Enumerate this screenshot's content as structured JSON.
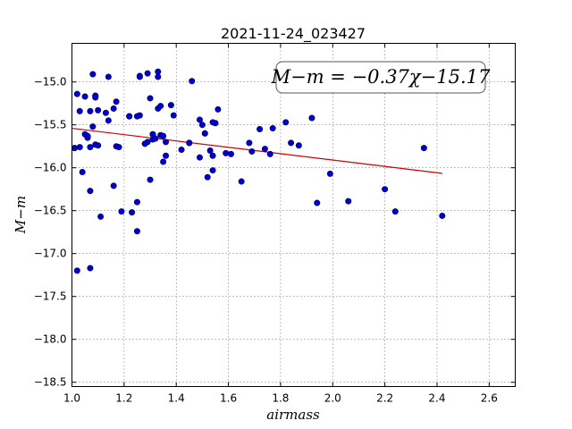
{
  "chart_data": {
    "type": "scatter",
    "title": "2021-11-24_023427",
    "xlabel": "airmass",
    "ylabel": "M−m",
    "xlim": [
      1.0,
      2.7
    ],
    "ylim": [
      -18.55,
      -14.55
    ],
    "xticks": [
      1.0,
      1.2,
      1.4,
      1.6,
      1.8,
      2.0,
      2.2,
      2.4,
      2.6
    ],
    "xtick_labels": [
      "1.0",
      "1.2",
      "1.4",
      "1.6",
      "1.8",
      "2.0",
      "2.2",
      "2.4",
      "2.6"
    ],
    "yticks": [
      -15.0,
      -15.5,
      -16.0,
      -16.5,
      -17.0,
      -17.5,
      -18.0,
      -18.5
    ],
    "ytick_labels": [
      "−15.0",
      "−15.5",
      "−16.0",
      "−16.5",
      "−17.0",
      "−17.5",
      "−18.0",
      "−18.5"
    ],
    "grid": true,
    "annotation": "M−m = −0.37χ−15.17",
    "point_color": "#0000cc",
    "fit_color": "#cc0000",
    "fit": {
      "slope": -0.37,
      "intercept": -15.17,
      "x_range": [
        1.0,
        2.42
      ]
    },
    "x": [
      1.01,
      1.02,
      1.03,
      1.03,
      1.05,
      1.05,
      1.06,
      1.06,
      1.07,
      1.07,
      1.08,
      1.08,
      1.09,
      1.09,
      1.09,
      1.1,
      1.11,
      1.13,
      1.14,
      1.14,
      1.16,
      1.17,
      1.17,
      1.19,
      1.22,
      1.23,
      1.25,
      1.26,
      1.26,
      1.28,
      1.29,
      1.29,
      1.3,
      1.31,
      1.31,
      1.32,
      1.33,
      1.33,
      1.34,
      1.34,
      1.35,
      1.36,
      1.36,
      1.38,
      1.39,
      1.42,
      1.45,
      1.46,
      1.49,
      1.5,
      1.51,
      1.52,
      1.53,
      1.54,
      1.55,
      1.56,
      1.59,
      1.61,
      1.65,
      1.68,
      1.69,
      1.72,
      1.74,
      1.76,
      1.77,
      1.82,
      1.84,
      1.87,
      1.92,
      1.94,
      1.99,
      2.06,
      2.2,
      2.24,
      2.35,
      2.42,
      1.01,
      1.04,
      1.06,
      1.09,
      1.1,
      1.16,
      1.18,
      1.22,
      1.25,
      1.26,
      1.28,
      1.3,
      1.31,
      1.33,
      1.35,
      1.45,
      1.49,
      1.51,
      1.54,
      1.54,
      1.02,
      1.07,
      1.25,
      1.07
    ],
    "y": [
      -15.77,
      -15.14,
      -15.34,
      -15.76,
      -15.17,
      -15.61,
      -15.64,
      -15.65,
      -15.34,
      -15.76,
      -15.52,
      -14.91,
      -15.16,
      -15.18,
      -15.73,
      -15.33,
      -16.57,
      -15.36,
      -14.94,
      -15.45,
      -15.31,
      -15.23,
      -15.75,
      -16.51,
      -15.4,
      -16.52,
      -16.4,
      -15.39,
      -14.94,
      -15.72,
      -15.7,
      -14.9,
      -15.19,
      -15.61,
      -15.67,
      -15.66,
      -15.31,
      -14.88,
      -15.28,
      -15.62,
      -15.93,
      -15.7,
      -15.86,
      -15.27,
      -15.39,
      -15.79,
      -15.71,
      -14.99,
      -15.88,
      -15.5,
      -15.6,
      -16.11,
      -15.8,
      -15.86,
      -15.48,
      -15.32,
      -15.83,
      -15.84,
      -16.16,
      -15.71,
      -15.81,
      -15.55,
      -15.78,
      -15.84,
      -15.54,
      -15.47,
      -15.71,
      -15.74,
      -15.42,
      -16.41,
      -16.07,
      -16.39,
      -16.25,
      -16.51,
      -15.77,
      -16.56,
      -15.77,
      -16.05,
      -15.63,
      -15.17,
      -15.74,
      -16.21,
      -15.76,
      -15.4,
      -16.74,
      -14.93,
      -15.72,
      -16.14,
      -15.61,
      -14.94,
      -15.63,
      -15.71,
      -15.44,
      -15.6,
      -16.03,
      -15.47,
      -17.2,
      -16.27,
      -15.4,
      -17.17
    ]
  }
}
